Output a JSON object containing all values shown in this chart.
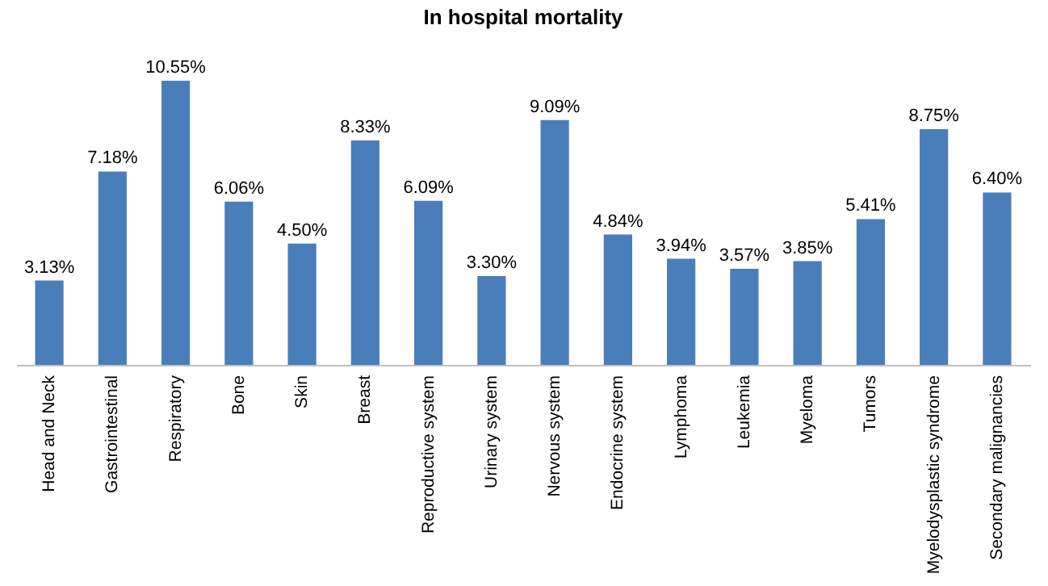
{
  "chart_data": {
    "type": "bar",
    "title": "In hospital mortality",
    "categories": [
      "Head and Neck",
      "Gastrointestinal",
      "Respiratory",
      "Bone",
      "Skin",
      "Breast",
      "Reproductive system",
      "Urinary system",
      "Nervous system",
      "Endocrine system",
      "Lymphoma",
      "Leukemia",
      "Myeloma",
      "Tumors",
      "Myelodysplastic syndrome",
      "Secondary malignancies"
    ],
    "values": [
      3.13,
      7.18,
      10.55,
      6.06,
      4.5,
      8.33,
      6.09,
      3.3,
      9.09,
      4.84,
      3.94,
      3.57,
      3.85,
      5.41,
      8.75,
      6.4
    ],
    "value_labels": [
      "3.13%",
      "7.18%",
      "10.55%",
      "6.06%",
      "4.50%",
      "8.33%",
      "6.09%",
      "3.30%",
      "9.09%",
      "4.84%",
      "3.94%",
      "3.57%",
      "3.85%",
      "5.41%",
      "8.75%",
      "6.40%"
    ],
    "color": "#4a7ebb",
    "tick_labels": "x"
  }
}
